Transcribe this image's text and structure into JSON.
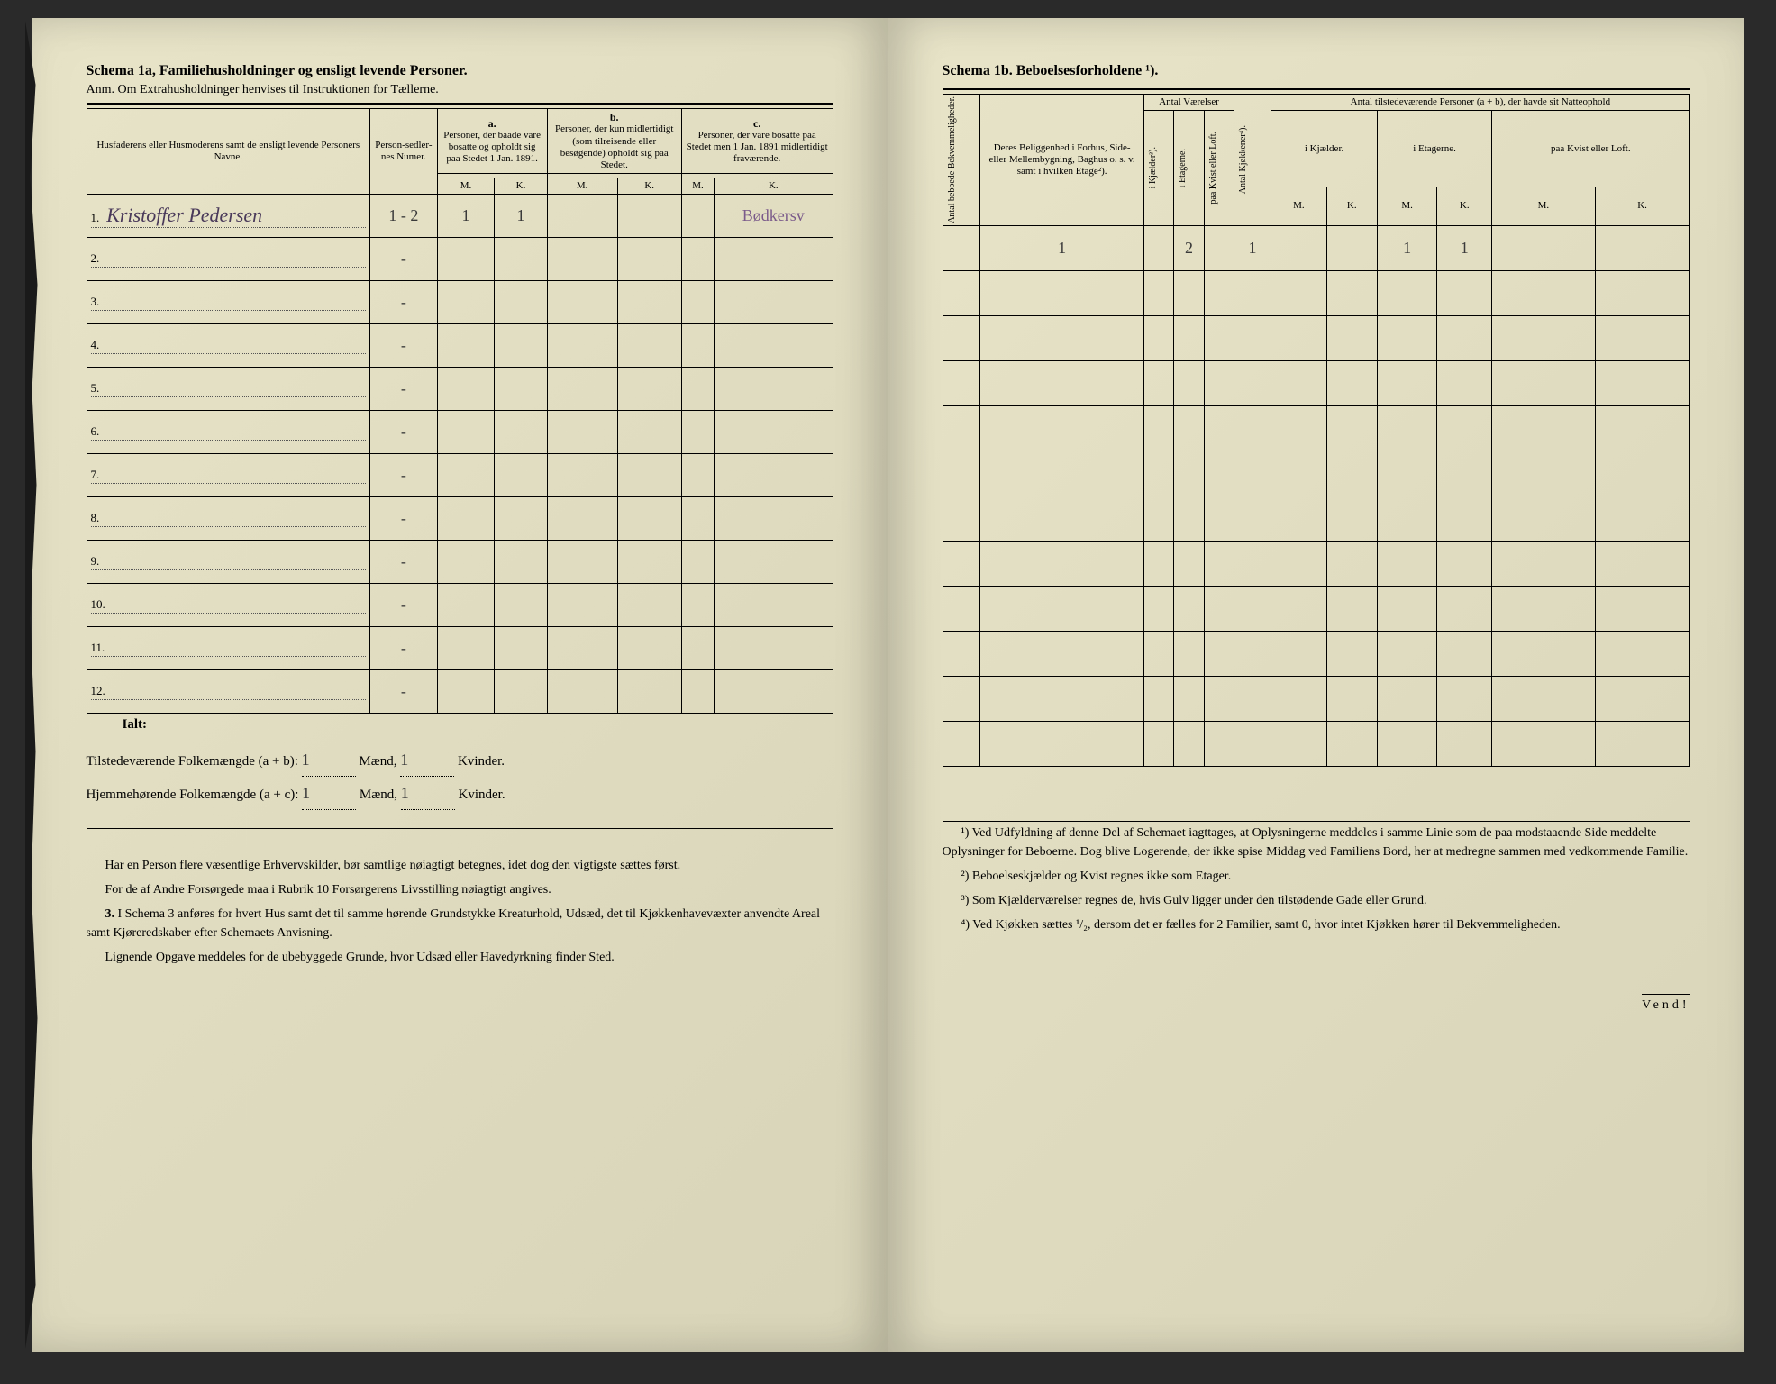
{
  "left_page": {
    "title": "Schema 1a,   Familiehusholdninger og ensligt levende Personer.",
    "anm": "Anm.  Om Extrahusholdninger henvises til Instruktionen for Tællerne.",
    "header": {
      "col1": "Husfaderens eller Husmoderens samt de ensligt levende Personers Navne.",
      "col2": "Person-sedler-nes Numer.",
      "group_a_label": "a.",
      "group_a": "Personer, der baade vare bosatte og opholdt sig paa Stedet 1 Jan. 1891.",
      "group_b_label": "b.",
      "group_b": "Personer, der kun midlertidigt (som tilreisende eller besøgende) opholdt sig paa Stedet.",
      "group_c_label": "c.",
      "group_c": "Personer, der vare bosatte paa Stedet men 1 Jan. 1891 midlertidigt fraværende.",
      "m": "M.",
      "k": "K."
    },
    "rows": [
      {
        "num": "1.",
        "name": "Kristoffer Pedersen",
        "numer": "1 - 2",
        "a_m": "1",
        "a_k": "1",
        "note": "Bødkersv"
      },
      {
        "num": "2.",
        "name": "",
        "numer": "-"
      },
      {
        "num": "3.",
        "name": "",
        "numer": "-"
      },
      {
        "num": "4.",
        "name": "",
        "numer": "-"
      },
      {
        "num": "5.",
        "name": "",
        "numer": "-"
      },
      {
        "num": "6.",
        "name": "",
        "numer": "-"
      },
      {
        "num": "7.",
        "name": "",
        "numer": "-"
      },
      {
        "num": "8.",
        "name": "",
        "numer": "-"
      },
      {
        "num": "9.",
        "name": "",
        "numer": "-"
      },
      {
        "num": "10.",
        "name": "",
        "numer": "-"
      },
      {
        "num": "11.",
        "name": "",
        "numer": "-"
      },
      {
        "num": "12.",
        "name": "",
        "numer": "-"
      }
    ],
    "ialt": "Ialt:",
    "summary1_label": "Tilstedeværende Folkemængde (a + b):",
    "summary2_label": "Hjemmehørende Folkemængde (a + c):",
    "sum_m1": "1",
    "sum_k1": "1",
    "sum_m2": "1",
    "sum_k2": "1",
    "maend": "Mænd,",
    "kvinder": "Kvinder.",
    "foot1": "Har en Person flere væsentlige Erhvervskilder, bør samtlige nøiagtigt betegnes, idet dog den vigtigste sættes først.",
    "foot2": "For de af Andre Forsørgede maa i Rubrik 10 Forsørgerens Livsstilling nøiagtigt angives.",
    "foot3_num": "3.",
    "foot3": "I Schema 3 anføres for hvert Hus samt det til samme hørende Grundstykke Kreaturhold, Udsæd, det til Kjøkkenhavevæxter anvendte Areal samt Kjøreredskaber efter Schemaets Anvisning.",
    "foot4": "Lignende Opgave meddeles for de ubebyggede Grunde, hvor Udsæd eller Havedyrkning finder Sted."
  },
  "right_page": {
    "title": "Schema 1b.            Beboelsesforholdene ¹).",
    "header": {
      "col1": "Antal beboede Bekvemmeligheder.",
      "col2": "Deres Beliggenhed i Forhus, Side- eller Mellembygning, Baghus o. s. v. samt i hvilken Etage²).",
      "group_rooms": "Antal Værelser",
      "rooms_a": "i Kjælder³).",
      "rooms_b": "i Etagerne.",
      "rooms_c": "paa Kvist eller Loft.",
      "col_kitchen": "Antal Kjøkkener⁴).",
      "group_persons": "Antal tilstedeværende Personer (a + b), der havde sit Natteophold",
      "pers_a": "i Kjælder.",
      "pers_b": "i Etagerne.",
      "pers_c": "paa Kvist eller Loft.",
      "m": "M.",
      "k": "K."
    },
    "rows": [
      {
        "c2": "1",
        "etag": "2",
        "kitch": "1",
        "pe_m": "1",
        "pe_k": "1"
      },
      {},
      {},
      {},
      {},
      {},
      {},
      {},
      {},
      {},
      {},
      {}
    ],
    "foot1": "¹) Ved Udfyldning af denne Del af Schemaet iagttages, at Oplysningerne meddeles i samme Linie som de paa modstaaende Side meddelte Oplysninger for Beboerne. Dog blive Logerende, der ikke spise Middag ved Familiens Bord, her at medregne sammen med vedkommende Familie.",
    "foot2": "²) Beboelseskjælder og Kvist regnes ikke som Etager.",
    "foot3": "³) Som Kjælderværelser regnes de, hvis Gulv ligger under den tilstødende Gade eller Grund.",
    "foot4": "⁴) Ved Kjøkken sættes ¹/₂, dersom det er fælles for 2 Familier, samt 0, hvor intet Kjøkken hører til Bekvemmeligheden.",
    "vend": "Vend!"
  }
}
